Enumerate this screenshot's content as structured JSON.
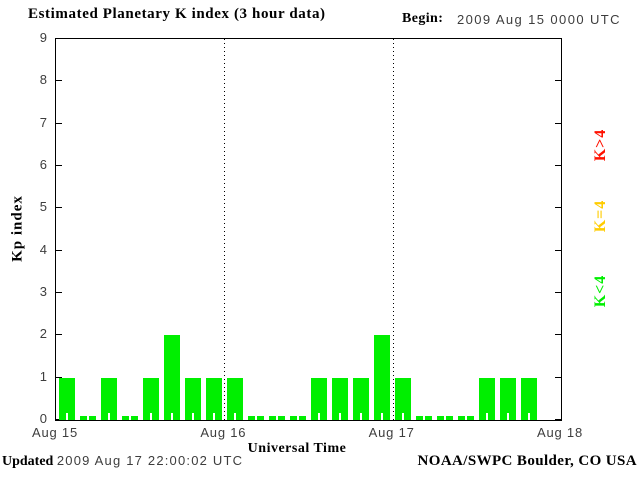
{
  "chart_data": {
    "type": "bar",
    "title": "Estimated Planetary K index (3 hour data)",
    "begin": {
      "label": "Begin:",
      "value": "2009 Aug 15 0000 UTC"
    },
    "ylabel": "Kp index",
    "xlabel": "Universal Time",
    "ylim": [
      0,
      9
    ],
    "yticks": [
      0,
      1,
      2,
      3,
      4,
      5,
      6,
      7,
      8,
      9
    ],
    "x_day_labels": [
      "Aug 15",
      "Aug 16",
      "Aug 17",
      "Aug 18"
    ],
    "hours_per_bar": 3,
    "series": [
      {
        "day": "Aug 15",
        "values": [
          1,
          0,
          1,
          0,
          1,
          2,
          1,
          1
        ]
      },
      {
        "day": "Aug 16",
        "values": [
          1,
          0,
          0,
          0,
          1,
          1,
          1,
          2
        ]
      },
      {
        "day": "Aug 17",
        "values": [
          1,
          0,
          0,
          0,
          1,
          1,
          1
        ]
      }
    ],
    "colors": {
      "k_lt_4": "#00ef00",
      "k_eq_4": "#ffcc00",
      "k_gt_4": "#ff1100",
      "axis": "#000000",
      "background": "#ffffff"
    },
    "legend": [
      {
        "label": "K>4",
        "color_key": "k_gt_4"
      },
      {
        "label": "K=4",
        "color_key": "k_eq_4"
      },
      {
        "label": "K<4",
        "color_key": "k_lt_4"
      }
    ],
    "grid": {
      "vertical_dotted_day_lines": true,
      "horizontal": false,
      "legend_position": "right-rotated"
    },
    "footer": {
      "updated_label": "Updated",
      "updated_value": "2009 Aug 17 22:00:02 UTC",
      "credit": "NOAA/SWPC Boulder, CO USA"
    }
  }
}
